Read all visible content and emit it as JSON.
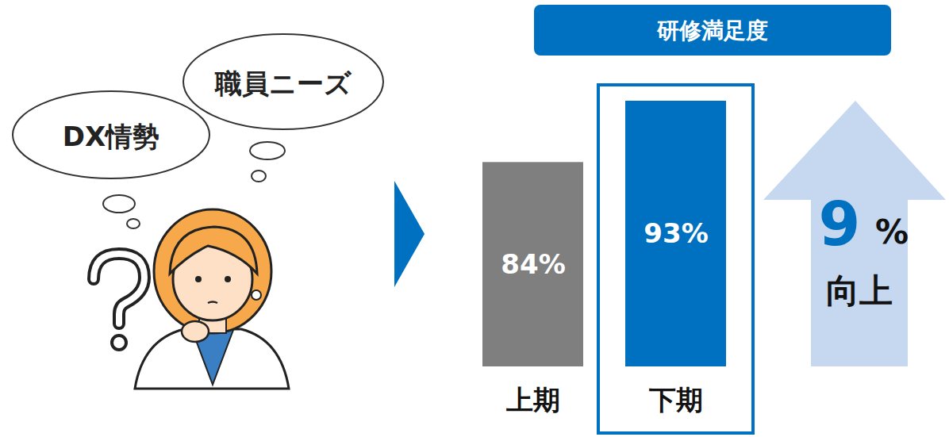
{
  "chart_data": {
    "type": "bar",
    "title": "研修満足度",
    "categories": [
      "上期",
      "下期"
    ],
    "values": [
      84,
      93
    ],
    "value_labels": [
      "84%",
      "93%"
    ],
    "data_labels": true,
    "colors": [
      "#7f7f7f",
      "#0070c0"
    ],
    "ylim": [
      54,
      93
    ],
    "tick_labels": "x",
    "annotation": {
      "value": 9,
      "unit": "%",
      "text": "向上"
    }
  },
  "illustration": {
    "thoughts": [
      "職員ニーズ",
      "DX情勢"
    ]
  }
}
